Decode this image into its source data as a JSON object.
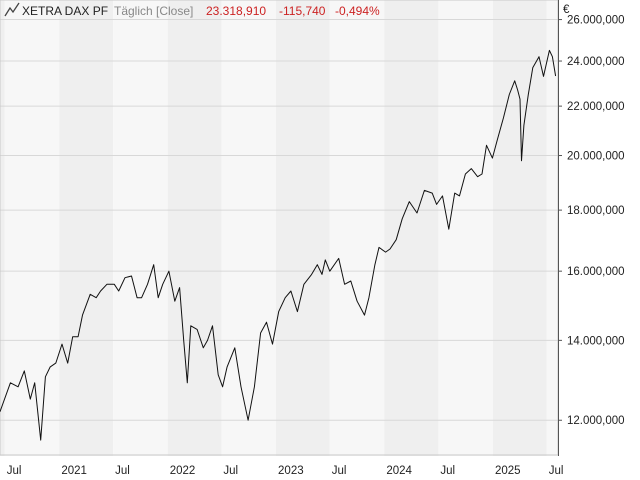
{
  "header": {
    "instrument": "XETRA DAX PF",
    "period": "Täglich [Close]",
    "last": "23.318,910",
    "change": "-115,740",
    "change_pct": "-0,494%"
  },
  "currency": "€",
  "colors": {
    "negative": "#cc2222",
    "line": "#111111",
    "grid": "#d8d8d8",
    "band_light": "#f7f7f7",
    "band_dark": "#efefef",
    "axis_area": "#ffffff"
  },
  "chart_data": {
    "type": "line",
    "title": "XETRA DAX PF",
    "y_scale": "log",
    "ylim": [
      11200000,
      27000000
    ],
    "xlim": [
      "2020-06-15",
      "2025-08-08"
    ],
    "y_ticks": [
      {
        "value": 12000000,
        "label": "12.000,000"
      },
      {
        "value": 14000000,
        "label": "14.000,000"
      },
      {
        "value": 16000000,
        "label": "16.000,000"
      },
      {
        "value": 18000000,
        "label": "18.000,000"
      },
      {
        "value": 20000000,
        "label": "20.000,000"
      },
      {
        "value": 22000000,
        "label": "22.000,000"
      },
      {
        "value": 24000000,
        "label": "24.000,000"
      },
      {
        "value": 26000000,
        "label": "26.000,000"
      }
    ],
    "x_ticks": [
      {
        "date": "2020-07-01",
        "label": "Jul"
      },
      {
        "date": "2021-01-01",
        "label": "2021"
      },
      {
        "date": "2021-07-01",
        "label": "Jul"
      },
      {
        "date": "2022-01-01",
        "label": "2022"
      },
      {
        "date": "2022-07-01",
        "label": "Jul"
      },
      {
        "date": "2023-01-01",
        "label": "2023"
      },
      {
        "date": "2023-07-01",
        "label": "Jul"
      },
      {
        "date": "2024-01-01",
        "label": "2024"
      },
      {
        "date": "2024-07-01",
        "label": "Jul"
      },
      {
        "date": "2025-01-01",
        "label": "2025"
      },
      {
        "date": "2025-07-01",
        "label": "Jul"
      }
    ],
    "grid": true,
    "series": [
      {
        "points": [
          [
            "2020-06-15",
            12200000
          ],
          [
            "2020-07-20",
            12900000
          ],
          [
            "2020-08-15",
            12800000
          ],
          [
            "2020-09-05",
            13200000
          ],
          [
            "2020-09-25",
            12500000
          ],
          [
            "2020-10-10",
            12900000
          ],
          [
            "2020-10-30",
            11550000
          ],
          [
            "2020-11-15",
            13050000
          ],
          [
            "2020-12-01",
            13300000
          ],
          [
            "2020-12-20",
            13400000
          ],
          [
            "2021-01-10",
            13900000
          ],
          [
            "2021-01-29",
            13400000
          ],
          [
            "2021-02-15",
            14100000
          ],
          [
            "2021-03-05",
            14100000
          ],
          [
            "2021-03-20",
            14700000
          ],
          [
            "2021-04-15",
            15300000
          ],
          [
            "2021-05-05",
            15200000
          ],
          [
            "2021-05-20",
            15400000
          ],
          [
            "2021-06-10",
            15600000
          ],
          [
            "2021-07-05",
            15600000
          ],
          [
            "2021-07-20",
            15400000
          ],
          [
            "2021-08-10",
            15800000
          ],
          [
            "2021-09-01",
            15850000
          ],
          [
            "2021-09-20",
            15200000
          ],
          [
            "2021-10-05",
            15200000
          ],
          [
            "2021-10-25",
            15600000
          ],
          [
            "2021-11-15",
            16200000
          ],
          [
            "2021-11-30",
            15200000
          ],
          [
            "2021-12-15",
            15600000
          ],
          [
            "2022-01-05",
            16000000
          ],
          [
            "2022-01-25",
            15100000
          ],
          [
            "2022-02-10",
            15500000
          ],
          [
            "2022-02-24",
            14000000
          ],
          [
            "2022-03-08",
            12900000
          ],
          [
            "2022-03-20",
            14400000
          ],
          [
            "2022-04-10",
            14300000
          ],
          [
            "2022-05-01",
            13800000
          ],
          [
            "2022-05-15",
            14000000
          ],
          [
            "2022-06-01",
            14400000
          ],
          [
            "2022-06-20",
            13100000
          ],
          [
            "2022-07-05",
            12800000
          ],
          [
            "2022-07-20",
            13300000
          ],
          [
            "2022-08-15",
            13800000
          ],
          [
            "2022-09-05",
            12800000
          ],
          [
            "2022-09-29",
            12000000
          ],
          [
            "2022-10-20",
            12800000
          ],
          [
            "2022-11-10",
            14200000
          ],
          [
            "2022-11-30",
            14500000
          ],
          [
            "2022-12-20",
            13900000
          ],
          [
            "2023-01-10",
            14800000
          ],
          [
            "2023-02-01",
            15200000
          ],
          [
            "2023-02-20",
            15400000
          ],
          [
            "2023-03-14",
            14800000
          ],
          [
            "2023-04-05",
            15600000
          ],
          [
            "2023-05-01",
            15900000
          ],
          [
            "2023-05-20",
            16200000
          ],
          [
            "2023-06-05",
            15900000
          ],
          [
            "2023-06-16",
            16350000
          ],
          [
            "2023-07-01",
            16000000
          ],
          [
            "2023-07-31",
            16400000
          ],
          [
            "2023-08-20",
            15600000
          ],
          [
            "2023-09-10",
            15700000
          ],
          [
            "2023-10-01",
            15100000
          ],
          [
            "2023-10-26",
            14700000
          ],
          [
            "2023-11-10",
            15200000
          ],
          [
            "2023-11-30",
            16200000
          ],
          [
            "2023-12-14",
            16750000
          ],
          [
            "2024-01-05",
            16600000
          ],
          [
            "2024-01-20",
            16700000
          ],
          [
            "2024-02-10",
            17000000
          ],
          [
            "2024-03-01",
            17700000
          ],
          [
            "2024-03-25",
            18300000
          ],
          [
            "2024-04-20",
            17900000
          ],
          [
            "2024-05-15",
            18700000
          ],
          [
            "2024-06-10",
            18600000
          ],
          [
            "2024-06-25",
            18200000
          ],
          [
            "2024-07-15",
            18500000
          ],
          [
            "2024-08-05",
            17350000
          ],
          [
            "2024-08-25",
            18600000
          ],
          [
            "2024-09-10",
            18500000
          ],
          [
            "2024-09-30",
            19300000
          ],
          [
            "2024-10-20",
            19500000
          ],
          [
            "2024-11-10",
            19200000
          ],
          [
            "2024-11-25",
            19300000
          ],
          [
            "2024-12-10",
            20400000
          ],
          [
            "2024-12-30",
            19900000
          ],
          [
            "2025-01-15",
            20600000
          ],
          [
            "2025-02-05",
            21500000
          ],
          [
            "2025-02-25",
            22500000
          ],
          [
            "2025-03-15",
            23100000
          ],
          [
            "2025-03-25",
            22700000
          ],
          [
            "2025-04-02",
            22300000
          ],
          [
            "2025-04-07",
            19800000
          ],
          [
            "2025-04-15",
            21200000
          ],
          [
            "2025-04-30",
            22500000
          ],
          [
            "2025-05-15",
            23700000
          ],
          [
            "2025-06-05",
            24200000
          ],
          [
            "2025-06-20",
            23300000
          ],
          [
            "2025-07-10",
            24500000
          ],
          [
            "2025-07-20",
            24200000
          ],
          [
            "2025-07-31",
            23318910
          ]
        ]
      }
    ]
  }
}
